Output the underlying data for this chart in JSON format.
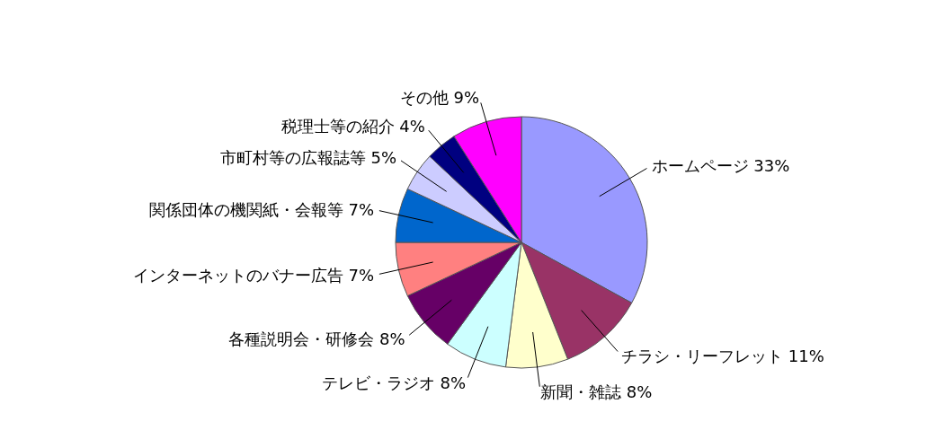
{
  "chart_data": {
    "type": "pie",
    "categories": [
      "ホームページ",
      "チラシ・リーフレット",
      "新聞・雑誌",
      "テレビ・ラジオ",
      "各種説明会・研修会",
      "インターネットのバナー広告",
      "関係団体の機関紙・会報等",
      "市町村等の広報誌等",
      "税理士等の紹介",
      "その他"
    ],
    "values": [
      33,
      11,
      8,
      8,
      8,
      7,
      7,
      5,
      4,
      9
    ],
    "value_labels": [
      "33%",
      "11%",
      "8%",
      "8%",
      "8%",
      "7%",
      "7%",
      "5%",
      "4%",
      "9%"
    ],
    "colors": [
      "#9999ff",
      "#993366",
      "#ffffcc",
      "#ccffff",
      "#660066",
      "#ff8080",
      "#0066cc",
      "#ccccff",
      "#000080",
      "#ff00ff"
    ],
    "legend": false
  }
}
